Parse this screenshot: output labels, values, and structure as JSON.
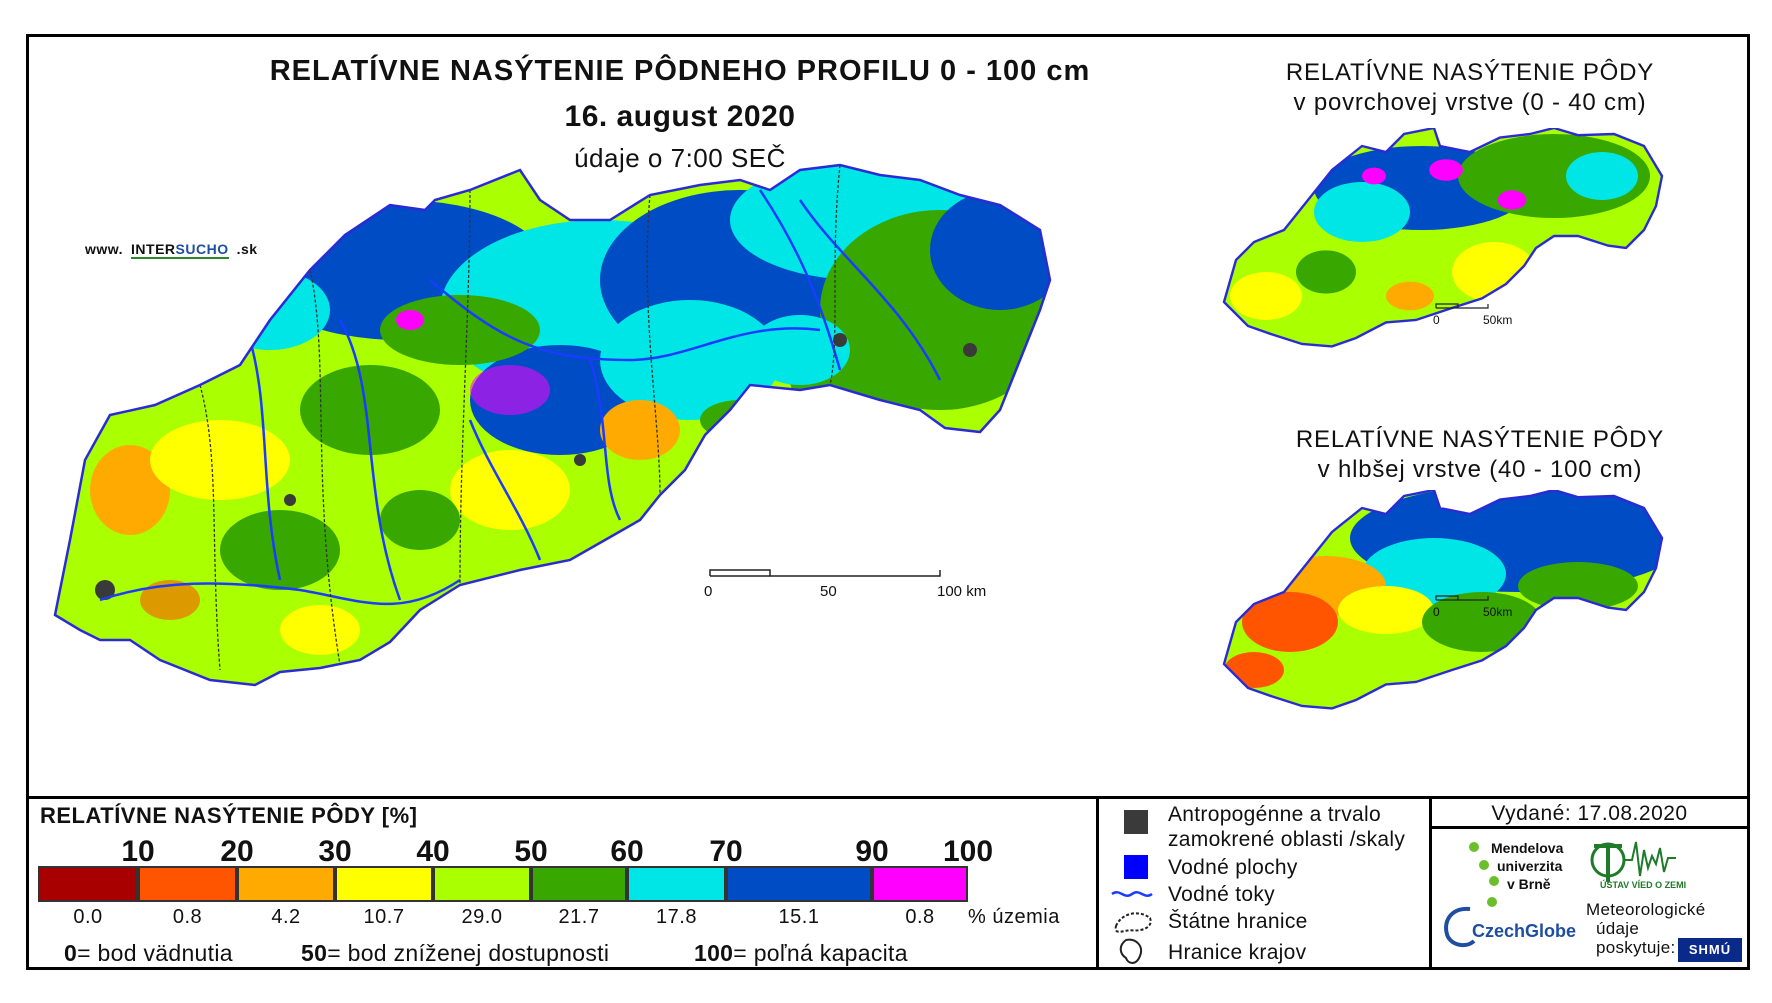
{
  "titles": {
    "main": "RELATÍVNE NASÝTENIE PÔDNEHO PROFILU 0 - 100 cm",
    "date": "16. august 2020",
    "time": "údaje o 7:00 SEČ"
  },
  "website": {
    "prefix": "www.",
    "brand_a": "INTER",
    "brand_b": "SUCHO",
    "suffix": ".sk"
  },
  "main_map": {
    "scale_labels": [
      "0",
      "50",
      "100 km"
    ]
  },
  "surface_map": {
    "title_line1": "RELATÍVNE NASÝTENIE PÔDY",
    "title_line2": "v povrchovej vrstve (0 - 40 cm)",
    "scale_labels": [
      "0",
      "50km"
    ]
  },
  "deep_map": {
    "title_line1": "RELATÍVNE NASÝTENIE PÔDY",
    "title_line2": "v hlbšej vrstve (40 - 100 cm)",
    "scale_labels": [
      "0",
      "50km"
    ]
  },
  "legend": {
    "title": "RELATÍVNE NASÝTENIE PÔDY [%]",
    "scale_values": [
      "10",
      "20",
      "30",
      "40",
      "50",
      "60",
      "70",
      "90",
      "100"
    ],
    "classes": [
      {
        "color": "#a80000",
        "share": "0.0"
      },
      {
        "color": "#ff5500",
        "share": "0.8"
      },
      {
        "color": "#ffaa00",
        "share": "4.2"
      },
      {
        "color": "#ffff00",
        "share": "10.7"
      },
      {
        "color": "#aaff00",
        "share": "29.0"
      },
      {
        "color": "#38a800",
        "share": "21.7"
      },
      {
        "color": "#00e6e6",
        "share": "17.8"
      },
      {
        "color": "#004cc4",
        "share": "15.1"
      },
      {
        "color": "#ff00ff",
        "share": "0.8"
      }
    ],
    "share_unit": "% územia",
    "definitions": [
      {
        "value": "0",
        "text": "= bod vädnutia"
      },
      {
        "value": "50",
        "text": "= bod zníženej dostupnosti"
      },
      {
        "value": "100",
        "text": "= poľná kapacita"
      }
    ]
  },
  "key": {
    "anthropogenic_line1": "Antropogénne a trvalo",
    "anthropogenic_line2": "zamokrené oblasti /skaly",
    "water_areas": "Vodné plochy",
    "rivers": "Vodné toky",
    "state_border": "Štátne hranice",
    "region_border": "Hranice krajov"
  },
  "issued": "Vydané: 17.08.2020",
  "credits": {
    "mendel_1": "Mendelova",
    "mendel_2": "univerzita",
    "mendel_3": "v Brně",
    "uvgz": "ÚSTAV VÍED O ZEMI",
    "czechglobe": "CzechGlobe",
    "meteo_1": "Meteorologické",
    "meteo_2": "údaje",
    "meteo_3": "poskytuje:",
    "shmu": "SHMÚ"
  },
  "colors": {
    "rivers": "#1a3cff",
    "water": "#0000ff",
    "anthropogenic": "#3a3a3a",
    "region_border": "#333333"
  }
}
